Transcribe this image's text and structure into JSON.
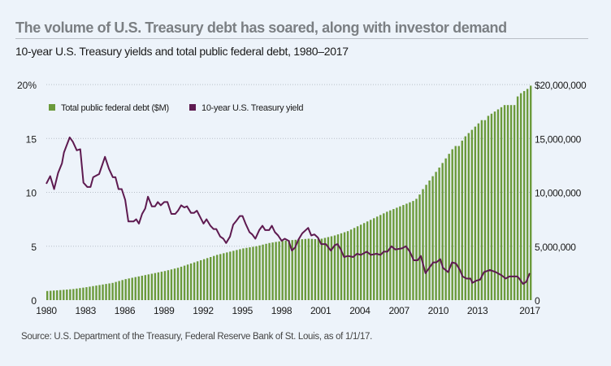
{
  "title": "The volume of U.S. Treasury debt has soared, along with investor demand",
  "subtitle": "10-year U.S. Treasury yields and total public federal debt, 1980–2017",
  "source": "Source: U.S. Department of the Treasury, Federal Reserve Bank of St. Louis, as of 1/1/17.",
  "chart_data": {
    "type": "bar+line",
    "title": "10-year U.S. Treasury yields and total public federal debt, 1980–2017",
    "grid": "horizontal dotted",
    "legend_placement": "top-left",
    "x_ticks": [
      "1980",
      "1983",
      "1986",
      "1989",
      "1992",
      "1995",
      "1998",
      "2001",
      "2004",
      "2007",
      "2010",
      "2013",
      "2017"
    ],
    "x_range": [
      1980,
      2017
    ],
    "left_axis": {
      "ticks": [
        "0",
        "5",
        "10",
        "15",
        "20%"
      ],
      "range": [
        0,
        20
      ]
    },
    "right_axis": {
      "ticks": [
        "0",
        "5,000,000",
        "10,000,000",
        "15,000,000",
        "$20,000,000"
      ],
      "range": [
        0,
        20000000
      ]
    },
    "colors": {
      "debt": "#6b9a3b",
      "yield": "#5e1a50",
      "grid": "#b8c0c8"
    },
    "series": [
      {
        "name": "Total public federal debt ($M)",
        "type": "bar",
        "axis": "right",
        "frequency": "quarterly",
        "start": 1980,
        "values": [
          845000,
          866000,
          888000,
          909000,
          930000,
          955000,
          980000,
          1005000,
          1030000,
          1073000,
          1115000,
          1158000,
          1200000,
          1250000,
          1300000,
          1350000,
          1400000,
          1450000,
          1500000,
          1550000,
          1600000,
          1688000,
          1775000,
          1863000,
          1950000,
          2013000,
          2075000,
          2138000,
          2200000,
          2263000,
          2325000,
          2388000,
          2450000,
          2513000,
          2575000,
          2638000,
          2700000,
          2775000,
          2850000,
          2925000,
          3000000,
          3100000,
          3200000,
          3300000,
          3400000,
          3500000,
          3600000,
          3700000,
          3800000,
          3900000,
          4000000,
          4100000,
          4200000,
          4275000,
          4350000,
          4425000,
          4500000,
          4575000,
          4650000,
          4725000,
          4800000,
          4850000,
          4900000,
          4950000,
          5000000,
          5075000,
          5150000,
          5225000,
          5300000,
          5350000,
          5400000,
          5450000,
          5500000,
          5525000,
          5550000,
          5575000,
          5600000,
          5625000,
          5650000,
          5675000,
          5700000,
          5680000,
          5660000,
          5690000,
          5700000,
          5775000,
          5850000,
          5925000,
          6000000,
          6100000,
          6200000,
          6300000,
          6400000,
          6550000,
          6700000,
          6850000,
          7000000,
          7150000,
          7300000,
          7450000,
          7600000,
          7750000,
          7900000,
          8050000,
          8200000,
          8325000,
          8450000,
          8575000,
          8700000,
          8825000,
          8950000,
          9075000,
          9200000,
          9400000,
          9800000,
          10300000,
          10700000,
          11100000,
          11500000,
          11900000,
          12300000,
          12725000,
          13150000,
          13575000,
          14000000,
          14300000,
          14300000,
          14800000,
          15200000,
          15500000,
          15800000,
          16100000,
          16400000,
          16700000,
          16700000,
          17100000,
          17300000,
          17500000,
          17700000,
          17900000,
          18100000,
          18100000,
          18100000,
          18100000,
          18900000,
          19200000,
          19400000,
          19600000,
          19900000
        ]
      },
      {
        "name": "10-year U.S. Treasury yield",
        "type": "line",
        "axis": "left",
        "points": [
          [
            1980.0,
            10.8
          ],
          [
            1980.3,
            11.5
          ],
          [
            1980.6,
            10.3
          ],
          [
            1980.9,
            11.8
          ],
          [
            1981.2,
            12.7
          ],
          [
            1981.35,
            13.7
          ],
          [
            1981.79,
            15.1
          ],
          [
            1982.03,
            14.7
          ],
          [
            1982.33,
            13.9
          ],
          [
            1982.6,
            14.0
          ],
          [
            1982.84,
            10.9
          ],
          [
            1983.14,
            10.5
          ],
          [
            1983.38,
            10.5
          ],
          [
            1983.59,
            11.4
          ],
          [
            1984.04,
            11.7
          ],
          [
            1984.49,
            13.3
          ],
          [
            1984.79,
            12.2
          ],
          [
            1985.09,
            11.4
          ],
          [
            1985.29,
            11.4
          ],
          [
            1985.53,
            10.3
          ],
          [
            1985.77,
            10.3
          ],
          [
            1986.04,
            9.3
          ],
          [
            1986.28,
            7.3
          ],
          [
            1986.67,
            7.3
          ],
          [
            1986.88,
            7.5
          ],
          [
            1987.09,
            7.1
          ],
          [
            1987.33,
            8.0
          ],
          [
            1987.57,
            8.5
          ],
          [
            1987.78,
            9.6
          ],
          [
            1988.08,
            8.7
          ],
          [
            1988.32,
            8.7
          ],
          [
            1988.53,
            9.1
          ],
          [
            1988.76,
            8.8
          ],
          [
            1989.03,
            9.1
          ],
          [
            1989.27,
            9.1
          ],
          [
            1989.57,
            8.0
          ],
          [
            1989.87,
            8.0
          ],
          [
            1990.08,
            8.3
          ],
          [
            1990.32,
            8.8
          ],
          [
            1990.56,
            8.6
          ],
          [
            1990.77,
            8.7
          ],
          [
            1991.07,
            8.1
          ],
          [
            1991.31,
            8.1
          ],
          [
            1991.52,
            8.3
          ],
          [
            1991.82,
            7.6
          ],
          [
            1992.03,
            7.1
          ],
          [
            1992.26,
            7.5
          ],
          [
            1992.56,
            6.9
          ],
          [
            1992.8,
            6.6
          ],
          [
            1993.01,
            6.6
          ],
          [
            1993.31,
            5.9
          ],
          [
            1993.55,
            5.7
          ],
          [
            1993.76,
            5.3
          ],
          [
            1994.06,
            5.9
          ],
          [
            1994.3,
            7.0
          ],
          [
            1994.51,
            7.3
          ],
          [
            1994.81,
            7.8
          ],
          [
            1995.02,
            7.8
          ],
          [
            1995.25,
            7.1
          ],
          [
            1995.55,
            6.3
          ],
          [
            1995.76,
            6.1
          ],
          [
            1996.0,
            5.7
          ],
          [
            1996.3,
            6.5
          ],
          [
            1996.54,
            6.9
          ],
          [
            1996.75,
            6.5
          ],
          [
            1997.05,
            6.5
          ],
          [
            1997.26,
            6.9
          ],
          [
            1997.5,
            6.3
          ],
          [
            1997.74,
            6.0
          ],
          [
            1998.01,
            5.5
          ],
          [
            1998.25,
            5.7
          ],
          [
            1998.55,
            5.5
          ],
          [
            1998.79,
            4.6
          ],
          [
            1999.05,
            4.9
          ],
          [
            1999.29,
            5.6
          ],
          [
            1999.59,
            6.2
          ],
          [
            2000.04,
            6.7
          ],
          [
            2000.28,
            6.0
          ],
          [
            2000.52,
            6.1
          ],
          [
            2000.79,
            5.8
          ],
          [
            2001.03,
            5.2
          ],
          [
            2001.39,
            5.2
          ],
          [
            2001.78,
            4.6
          ],
          [
            2002.08,
            5.1
          ],
          [
            2002.29,
            5.2
          ],
          [
            2002.5,
            4.8
          ],
          [
            2002.79,
            4.0
          ],
          [
            2003.09,
            4.1
          ],
          [
            2003.48,
            4.0
          ],
          [
            2003.78,
            4.3
          ],
          [
            2004.08,
            4.2
          ],
          [
            2004.53,
            4.5
          ],
          [
            2004.83,
            4.2
          ],
          [
            2005.28,
            4.3
          ],
          [
            2005.58,
            4.2
          ],
          [
            2005.82,
            4.5
          ],
          [
            2006.11,
            4.5
          ],
          [
            2006.41,
            5.0
          ],
          [
            2006.71,
            4.7
          ],
          [
            2007.22,
            4.8
          ],
          [
            2007.52,
            5.0
          ],
          [
            2007.82,
            4.5
          ],
          [
            2008.12,
            3.7
          ],
          [
            2008.42,
            3.7
          ],
          [
            2008.66,
            4.1
          ],
          [
            2009.02,
            2.5
          ],
          [
            2009.31,
            3.0
          ],
          [
            2009.61,
            3.5
          ],
          [
            2009.85,
            3.5
          ],
          [
            2010.15,
            3.8
          ],
          [
            2010.36,
            3.0
          ],
          [
            2010.75,
            2.6
          ],
          [
            2011.05,
            3.5
          ],
          [
            2011.35,
            3.4
          ],
          [
            2011.65,
            2.8
          ],
          [
            2011.86,
            2.2
          ],
          [
            2012.16,
            2.0
          ],
          [
            2012.46,
            2.0
          ],
          [
            2012.61,
            1.6
          ],
          [
            2012.9,
            1.8
          ],
          [
            2013.2,
            1.9
          ],
          [
            2013.5,
            2.6
          ],
          [
            2013.95,
            2.8
          ],
          [
            2014.4,
            2.6
          ],
          [
            2014.85,
            2.3
          ],
          [
            2015.15,
            2.0
          ],
          [
            2015.45,
            2.2
          ],
          [
            2015.84,
            2.2
          ],
          [
            2016.05,
            2.2
          ],
          [
            2016.2,
            2.0
          ],
          [
            2016.49,
            1.5
          ],
          [
            2016.73,
            1.7
          ],
          [
            2017.0,
            2.5
          ]
        ]
      }
    ]
  }
}
